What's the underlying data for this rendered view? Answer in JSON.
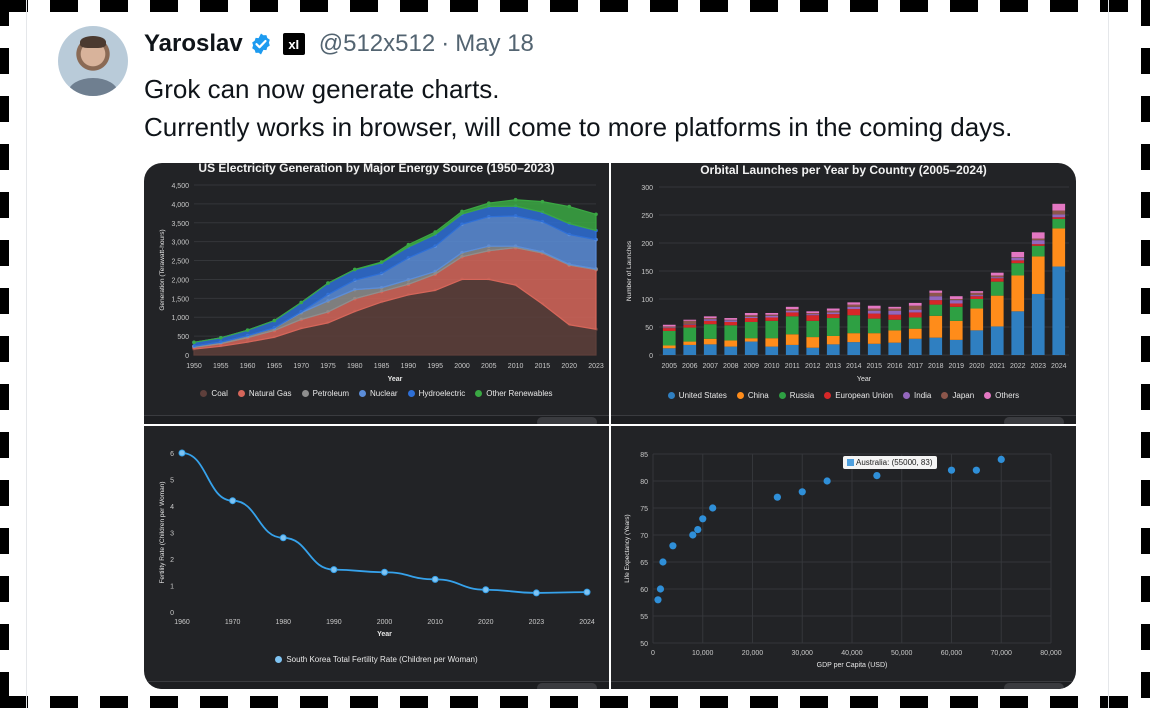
{
  "author": {
    "name": "Yaroslav",
    "affiliation_badge": "xI",
    "handle": "@512x512",
    "separator": "·",
    "date": "May 18"
  },
  "tweet": {
    "lines": [
      "Grok can now generate charts.",
      "Currently works in browser, will come to more platforms in the coming days."
    ]
  },
  "colors": {
    "verified": "#1d9bf0",
    "panel_bg": "#222326"
  },
  "charts": {
    "electricity": {
      "title": "US Electricity Generation by Major Energy Source (1950–2023)",
      "xlabel": "Year",
      "ylabel": "Generation (Terawatt-hours)",
      "legend": [
        "Coal",
        "Natural Gas",
        "Petroleum",
        "Nuclear",
        "Hydroelectric",
        "Other Renewables"
      ]
    },
    "orbital": {
      "title": "Orbital Launches per Year by Country (2005–2024)",
      "xlabel": "Year",
      "ylabel": "Number of Launches",
      "legend": [
        "United States",
        "China",
        "Russia",
        "European Union",
        "India",
        "Japan",
        "Others"
      ]
    },
    "fertility": {
      "xlabel": "Year",
      "ylabel": "Fertility Rate (Children per Woman)",
      "legend": [
        "South Korea Total Fertility Rate (Children per Woman)"
      ]
    },
    "lifeexp": {
      "xlabel": "GDP per Capita (USD)",
      "ylabel": "Life Expectancy (Years)",
      "tooltip": "Australia: (55000, 83)"
    }
  },
  "chart_data": [
    {
      "type": "area",
      "title": "US Electricity Generation by Major Energy Source (1950–2023)",
      "xlabel": "Year",
      "ylabel": "Generation (Terawatt-hours)",
      "stacked": true,
      "ylim": [
        0,
        4500
      ],
      "yticks": [
        0,
        500,
        1000,
        1500,
        2000,
        2500,
        3000,
        3500,
        4000,
        4500
      ],
      "x": [
        "1950",
        "1955",
        "1960",
        "1965",
        "1970",
        "1975",
        "1980",
        "1985",
        "1990",
        "1995",
        "2000",
        "2005",
        "2010",
        "2015",
        "2020",
        "2023"
      ],
      "series": [
        {
          "name": "Coal",
          "color": "#5e3f3b",
          "values": [
            155,
            230,
            340,
            470,
            700,
            850,
            1150,
            1400,
            1590,
            1710,
            2000,
            2000,
            1850,
            1350,
            800,
            680
          ]
        },
        {
          "name": "Natural Gas",
          "color": "#d6665a",
          "values": [
            45,
            70,
            120,
            180,
            240,
            290,
            340,
            280,
            280,
            430,
            600,
            760,
            990,
            1350,
            1580,
            1580
          ]
        },
        {
          "name": "Petroleum",
          "color": "#8e8e8e",
          "values": [
            35,
            40,
            50,
            65,
            180,
            290,
            240,
            100,
            120,
            70,
            110,
            120,
            40,
            30,
            20,
            20
          ]
        },
        {
          "name": "Nuclear",
          "color": "#5b8dd9",
          "values": [
            0,
            0,
            2,
            5,
            22,
            170,
            250,
            380,
            580,
            670,
            750,
            780,
            800,
            800,
            790,
            775
          ]
        },
        {
          "name": "Hydroelectric",
          "color": "#2e6fd6",
          "values": [
            100,
            115,
            145,
            190,
            245,
            300,
            280,
            280,
            290,
            310,
            270,
            270,
            260,
            250,
            290,
            240
          ]
        },
        {
          "name": "Other Renewables",
          "color": "#3aa843",
          "values": [
            0,
            0,
            0,
            2,
            3,
            3,
            6,
            20,
            60,
            65,
            70,
            90,
            170,
            280,
            450,
            430
          ]
        }
      ],
      "legend_position": "bottom",
      "grid": true
    },
    {
      "type": "bar",
      "stacked": true,
      "title": "Orbital Launches per Year by Country (2005–2024)",
      "xlabel": "Year",
      "ylabel": "Number of Launches",
      "ylim": [
        0,
        300
      ],
      "yticks": [
        0,
        50,
        100,
        150,
        200,
        250,
        300
      ],
      "categories": [
        "2005",
        "2006",
        "2007",
        "2008",
        "2009",
        "2010",
        "2011",
        "2012",
        "2013",
        "2014",
        "2015",
        "2016",
        "2017",
        "2018",
        "2019",
        "2020",
        "2021",
        "2022",
        "2023",
        "2024"
      ],
      "series": [
        {
          "name": "United States",
          "color": "#2f7fc1",
          "values": [
            12,
            18,
            19,
            15,
            24,
            15,
            18,
            13,
            19,
            23,
            20,
            22,
            29,
            31,
            27,
            44,
            51,
            78,
            109,
            158
          ]
        },
        {
          "name": "China",
          "color": "#ff8c1a",
          "values": [
            5,
            6,
            10,
            11,
            6,
            15,
            19,
            19,
            15,
            16,
            19,
            22,
            18,
            39,
            34,
            39,
            55,
            64,
            67,
            68
          ]
        },
        {
          "name": "Russia",
          "color": "#2ea043",
          "values": [
            26,
            25,
            26,
            27,
            29,
            31,
            32,
            29,
            32,
            32,
            26,
            19,
            20,
            20,
            25,
            17,
            25,
            22,
            19,
            17
          ]
        },
        {
          "name": "European Union",
          "color": "#d62728",
          "values": [
            5,
            5,
            6,
            6,
            7,
            6,
            7,
            10,
            7,
            11,
            9,
            9,
            9,
            8,
            6,
            5,
            6,
            5,
            3,
            3
          ]
        },
        {
          "name": "India",
          "color": "#9467bd",
          "values": [
            1,
            1,
            3,
            3,
            2,
            3,
            3,
            2,
            3,
            4,
            5,
            7,
            5,
            7,
            6,
            2,
            2,
            5,
            7,
            5
          ]
        },
        {
          "name": "Japan",
          "color": "#8c564b",
          "values": [
            2,
            6,
            2,
            1,
            3,
            2,
            3,
            2,
            3,
            4,
            4,
            4,
            7,
            6,
            2,
            4,
            3,
            1,
            3,
            7
          ]
        },
        {
          "name": "Others",
          "color": "#e377c2",
          "values": [
            3,
            2,
            3,
            3,
            4,
            3,
            4,
            3,
            4,
            4,
            5,
            3,
            5,
            4,
            5,
            3,
            5,
            9,
            11,
            12
          ]
        }
      ],
      "legend_position": "bottom",
      "grid": true
    },
    {
      "type": "line",
      "xlabel": "Year",
      "ylabel": "Fertility Rate (Children per Woman)",
      "ylim": [
        0,
        6
      ],
      "yticks": [
        0,
        1,
        2,
        3,
        4,
        5,
        6
      ],
      "x": [
        "1960",
        "1970",
        "1980",
        "1990",
        "2000",
        "2010",
        "2020",
        "2023",
        "2024"
      ],
      "series": [
        {
          "name": "South Korea Total Fertility Rate (Children per Woman)",
          "color": "#36a2eb",
          "values": [
            6.0,
            4.2,
            2.8,
            1.6,
            1.5,
            1.23,
            0.84,
            0.72,
            0.75
          ]
        }
      ],
      "legend_position": "bottom",
      "grid": false
    },
    {
      "type": "scatter",
      "xlabel": "GDP per Capita (USD)",
      "ylabel": "Life Expectancy (Years)",
      "xlim": [
        0,
        80000
      ],
      "ylim": [
        50,
        85
      ],
      "xticks": [
        0,
        10000,
        20000,
        30000,
        40000,
        50000,
        60000,
        70000,
        80000
      ],
      "xtick_labels": [
        "0",
        "10,000",
        "20,000",
        "30,000",
        "40,000",
        "50,000",
        "60,000",
        "70,000",
        "80,000"
      ],
      "yticks": [
        50,
        55,
        60,
        65,
        70,
        75,
        80,
        85
      ],
      "points": [
        [
          1000,
          58
        ],
        [
          1500,
          60
        ],
        [
          2000,
          65
        ],
        [
          4000,
          68
        ],
        [
          8000,
          70
        ],
        [
          9000,
          71
        ],
        [
          10000,
          73
        ],
        [
          12000,
          75
        ],
        [
          25000,
          77
        ],
        [
          30000,
          78
        ],
        [
          35000,
          80
        ],
        [
          45000,
          81
        ],
        [
          55000,
          83
        ],
        [
          60000,
          82
        ],
        [
          65000,
          82
        ],
        [
          70000,
          84
        ]
      ],
      "color": "#2f8fd8",
      "grid": true
    }
  ]
}
